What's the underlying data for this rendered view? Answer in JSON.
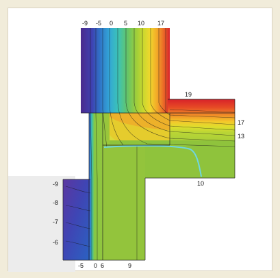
{
  "labels": {
    "top": [
      "-9",
      "-5",
      "0",
      "5",
      "10",
      "17"
    ],
    "right": [
      "19",
      "17",
      "13"
    ],
    "inner": "10",
    "left": [
      "-9",
      "-8",
      "-7",
      "-6"
    ],
    "bottom": [
      "-5",
      "0",
      "6",
      "9"
    ]
  },
  "colors": {
    "cold": "#3a2a8c",
    "warm": "#d8222a",
    "mid": "#9bc43a"
  }
}
